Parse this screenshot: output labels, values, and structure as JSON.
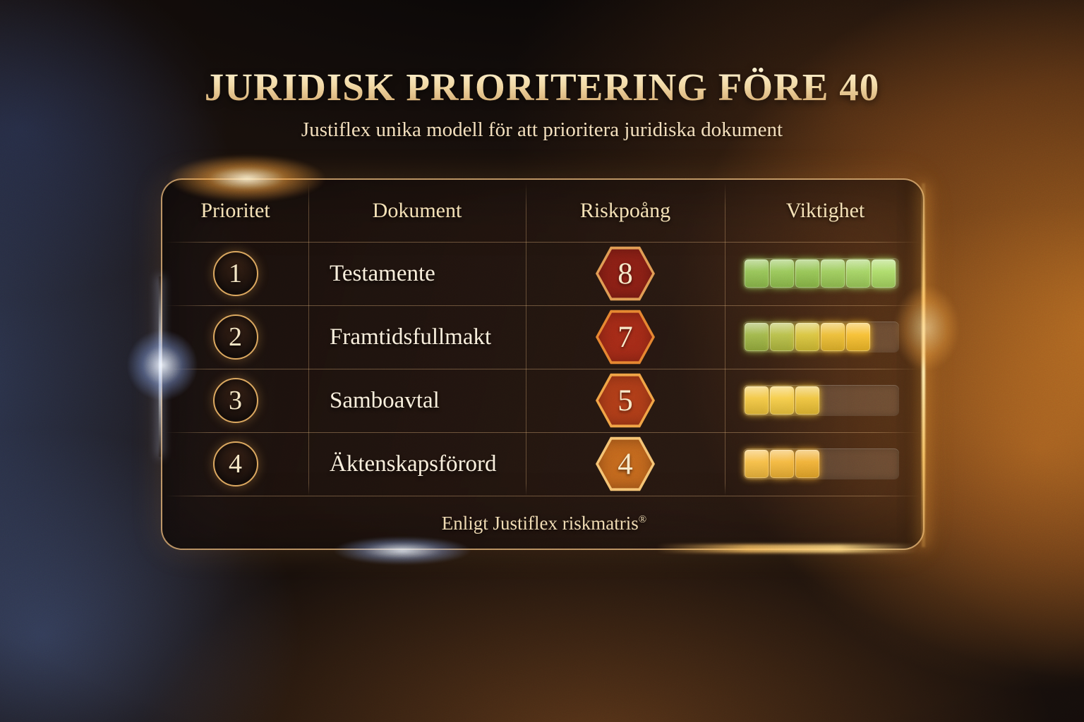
{
  "page": {
    "title": "JURIDISK PRIORITERING FÖRE 40",
    "subtitle": "Justiflex unika modell för att prioritera juridiska dokument"
  },
  "table": {
    "columns": [
      "Prioritet",
      "Dokument",
      "Riskpoång",
      "Viktighet"
    ],
    "rows": [
      {
        "priority": "1",
        "document": "Testamente",
        "risk_score": "8",
        "risk_badge_fill": "#8a1f15",
        "risk_badge_border": "#df9a52",
        "importance_filled": 6,
        "importance_total": 6,
        "importance_block_colors": [
          "#8fc04c",
          "#92c44e",
          "#8fc14a",
          "#98c953",
          "#9ed05a",
          "#a8da60"
        ]
      },
      {
        "priority": "2",
        "document": "Framtidsfullmakt",
        "risk_score": "7",
        "risk_badge_fill": "#a32a17",
        "risk_badge_border": "#e5832f",
        "importance_filled": 5,
        "importance_total": 6,
        "importance_block_colors": [
          "#9ab23e",
          "#b3bb3e",
          "#d7c134",
          "#ebb92b",
          "#f6bb27"
        ]
      },
      {
        "priority": "3",
        "document": "Samboavtal",
        "risk_score": "5",
        "risk_badge_fill": "#ae3c18",
        "risk_badge_border": "#f0a244",
        "importance_filled": 3,
        "importance_total": 6,
        "importance_block_colors": [
          "#f2c43a",
          "#f5c93e",
          "#eec033"
        ]
      },
      {
        "priority": "4",
        "document": "Äktenskapsförord",
        "risk_score": "4",
        "risk_badge_fill": "#c2671d",
        "risk_badge_border": "#f4c272",
        "importance_filled": 3,
        "importance_total": 6,
        "importance_block_colors": [
          "#f6ba3c",
          "#f4b434",
          "#f0ac2a"
        ]
      }
    ],
    "footer_text": "Enligt Justiflex riskmatris",
    "footer_mark": "®"
  },
  "colors": {
    "accent_gold": "#e4b478",
    "title_text": "#f2d9a4",
    "table_border": "#d9a764",
    "meter_track": "rgba(214,190,164,0.20)"
  },
  "chart_data": {
    "type": "table",
    "title": "JURIDISK PRIORITERING FÖRE 40",
    "subtitle": "Justiflex unika modell för att prioritera juridiska dokument",
    "columns": [
      "Prioritet",
      "Dokument",
      "Riskpoång",
      "Viktighet"
    ],
    "rows": [
      [
        "1",
        "Testamente",
        "8",
        "6 of 6 blocks filled (green)"
      ],
      [
        "2",
        "Framtidsfullmakt",
        "7",
        "5 of 6 blocks filled (green to yellow)"
      ],
      [
        "3",
        "Samboavtal",
        "5",
        "3 of 6 blocks filled (gold)"
      ],
      [
        "4",
        "Äktenskapsförord",
        "4",
        "3 of 6 blocks filled (gold-orange)"
      ]
    ],
    "footer": "Enligt Justiflex riskmatris®",
    "layout": "header row + 4 data rows + footer band; risk scores in hexagonal badges; importance as block meters"
  }
}
